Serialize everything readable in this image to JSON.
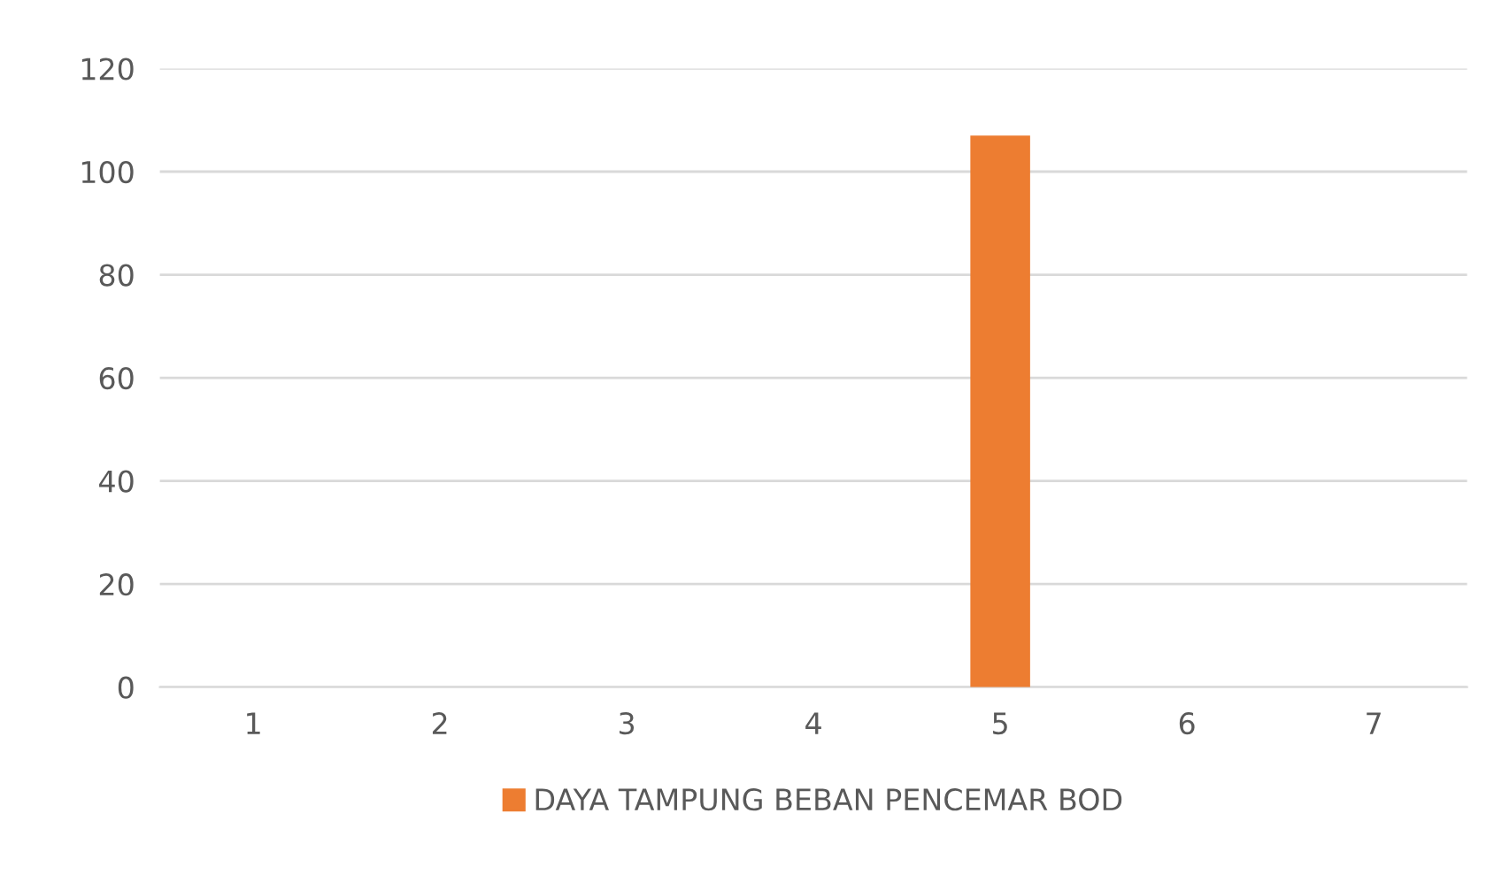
{
  "chart_data": {
    "type": "bar",
    "categories": [
      "1",
      "2",
      "3",
      "4",
      "5",
      "6",
      "7"
    ],
    "series": [
      {
        "name": "DAYA TAMPUNG BEBAN PENCEMAR BOD",
        "color": "#ed7d31",
        "values": [
          0,
          0,
          0,
          0,
          107,
          0,
          0
        ]
      }
    ],
    "ylim": [
      0,
      120
    ],
    "yticks": [
      0,
      20,
      40,
      60,
      80,
      100,
      120
    ],
    "grid": "y",
    "legend": "bottom"
  }
}
